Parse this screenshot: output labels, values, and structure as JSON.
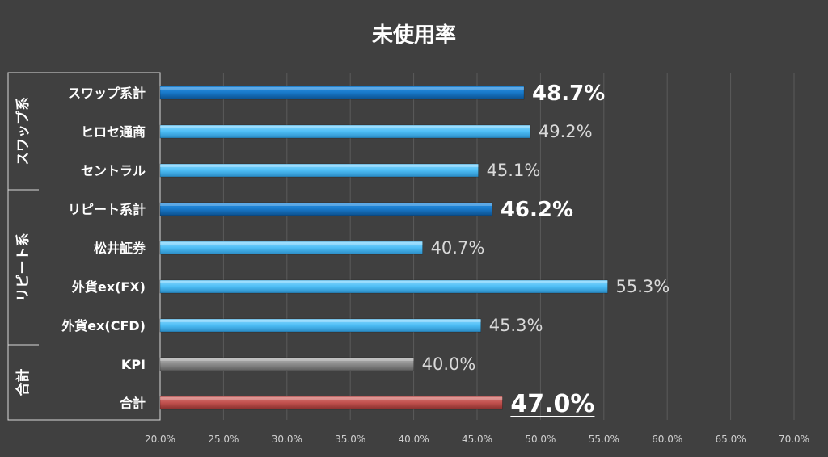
{
  "chart_data": {
    "type": "bar",
    "orientation": "horizontal",
    "title": "未使用率",
    "xlim": [
      0.2,
      0.7
    ],
    "x_ticks": [
      0.2,
      0.25,
      0.3,
      0.35,
      0.4,
      0.45,
      0.5,
      0.55,
      0.6,
      0.65,
      0.7
    ],
    "x_tick_labels": [
      "20.0%",
      "25.0%",
      "30.0%",
      "35.0%",
      "40.0%",
      "45.0%",
      "50.0%",
      "55.0%",
      "60.0%",
      "65.0%",
      "70.0%"
    ],
    "grid": "vertical",
    "groups": [
      {
        "name": "スワップ系",
        "categories": [
          "スワップ系計",
          "ヒロセ通商",
          "セントラル"
        ]
      },
      {
        "name": "リピート系",
        "categories": [
          "リピート系計",
          "松井証券",
          "外貨ex(FX)",
          "外貨ex(CFD)"
        ]
      },
      {
        "name": "合計",
        "categories": [
          "KPI",
          "合計"
        ]
      }
    ],
    "categories": [
      "スワップ系計",
      "ヒロセ通商",
      "セントラル",
      "リピート系計",
      "松井証券",
      "外貨ex(FX)",
      "外貨ex(CFD)",
      "KPI",
      "合計"
    ],
    "values": [
      0.487,
      0.492,
      0.451,
      0.462,
      0.407,
      0.553,
      0.453,
      0.4,
      0.47
    ],
    "value_labels": [
      "48.7%",
      "49.2%",
      "45.1%",
      "46.2%",
      "40.7%",
      "55.3%",
      "45.3%",
      "40.0%",
      "47.0%"
    ],
    "bar_styles": [
      "subtotal",
      "item",
      "item",
      "subtotal",
      "item",
      "item",
      "item",
      "kpi",
      "total"
    ],
    "colors": {
      "background": "#404040",
      "grid": "#5a5a5a",
      "subtotal": "#1a82d6",
      "item": "#4dbdf5",
      "kpi": "#8c8c8c",
      "total": "#c0504d"
    }
  }
}
